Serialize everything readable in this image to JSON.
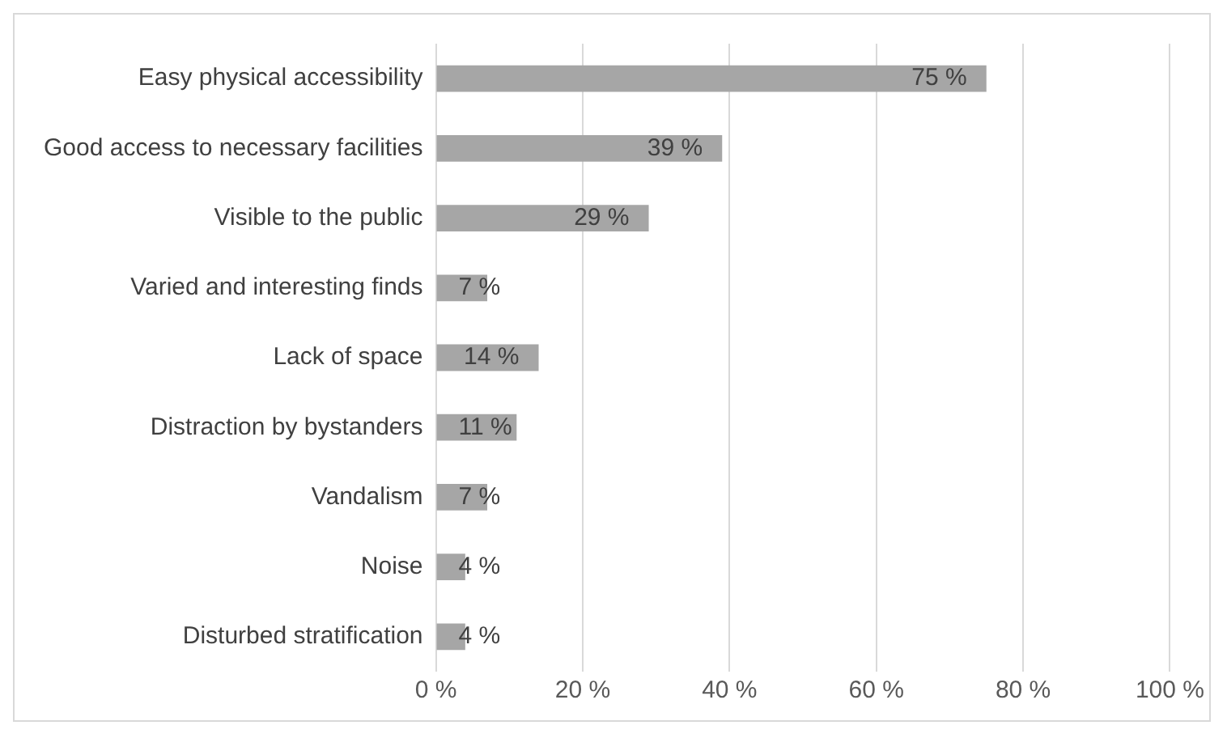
{
  "chart_data": {
    "type": "bar",
    "orientation": "horizontal",
    "categories": [
      "Easy physical accessibility",
      "Good access to necessary facilities",
      "Visible to the public",
      "Varied and interesting finds",
      "Lack of space",
      "Distraction by bystanders",
      "Vandalism",
      "Noise",
      "Disturbed stratification"
    ],
    "values": [
      75,
      39,
      29,
      7,
      14,
      11,
      7,
      4,
      4
    ],
    "value_labels": [
      "75 %",
      "39 %",
      "29 %",
      "7 %",
      "14 %",
      "11 %",
      "7 %",
      "4 %",
      "4 %"
    ],
    "color": "#a6a6a6",
    "xlim": [
      0,
      100
    ],
    "xticks": [
      {
        "value": 0,
        "label": "0 %"
      },
      {
        "value": 20,
        "label": "20 %"
      },
      {
        "value": 40,
        "label": "40 %"
      },
      {
        "value": 60,
        "label": "60 %"
      },
      {
        "value": 80,
        "label": "80 %"
      },
      {
        "value": 100,
        "label": "100 %"
      }
    ],
    "grid": "x",
    "legend": false
  }
}
